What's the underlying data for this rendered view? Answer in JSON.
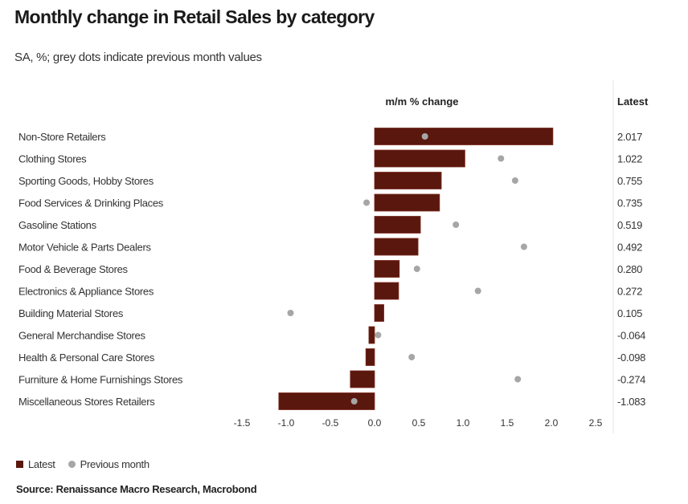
{
  "title": "Monthly change in Retail Sales by category",
  "subtitle": "SA, %; grey dots indicate previous month values",
  "chart_data": {
    "type": "bar",
    "xlabel": "m/m % change",
    "value_column_header": "Latest",
    "xlim": [
      -1.5,
      2.5
    ],
    "xticks": [
      "-1.5",
      "-1.0",
      "-0.5",
      "0.0",
      "0.5",
      "1.0",
      "1.5",
      "2.0",
      "2.5"
    ],
    "categories": [
      "Non-Store Retailers",
      "Clothing Stores",
      "Sporting Goods, Hobby Stores",
      "Food Services & Drinking Places",
      "Gasoline Stations",
      "Motor Vehicle & Parts Dealers",
      "Food & Beverage Stores",
      "Electronics & Appliance Stores",
      "Building Material Stores",
      "General Merchandise Stores",
      "Health & Personal Care Stores",
      "Furniture & Home Furnishings Stores",
      "Miscellaneous Stores Retailers"
    ],
    "series": [
      {
        "name": "Latest",
        "type": "bar",
        "color": "#5a170d",
        "values": [
          2.017,
          1.022,
          0.755,
          0.735,
          0.519,
          0.492,
          0.28,
          0.272,
          0.105,
          -0.064,
          -0.098,
          -0.274,
          -1.083
        ],
        "labels": [
          "2.017",
          "1.022",
          "0.755",
          "0.735",
          "0.519",
          "0.492",
          "0.280",
          "0.272",
          "0.105",
          "-0.064",
          "-0.098",
          "-0.274",
          "-1.083"
        ]
      },
      {
        "name": "Previous month",
        "type": "scatter",
        "color": "#a6a6a6",
        "values": [
          0.57,
          1.43,
          1.59,
          -0.09,
          0.92,
          1.69,
          0.48,
          1.17,
          -0.95,
          0.04,
          0.42,
          1.62,
          -0.23
        ]
      }
    ]
  },
  "legend": {
    "latest": "Latest",
    "previous": "Previous month"
  },
  "source": "Source: Renaissance Macro Research, Macrobond"
}
